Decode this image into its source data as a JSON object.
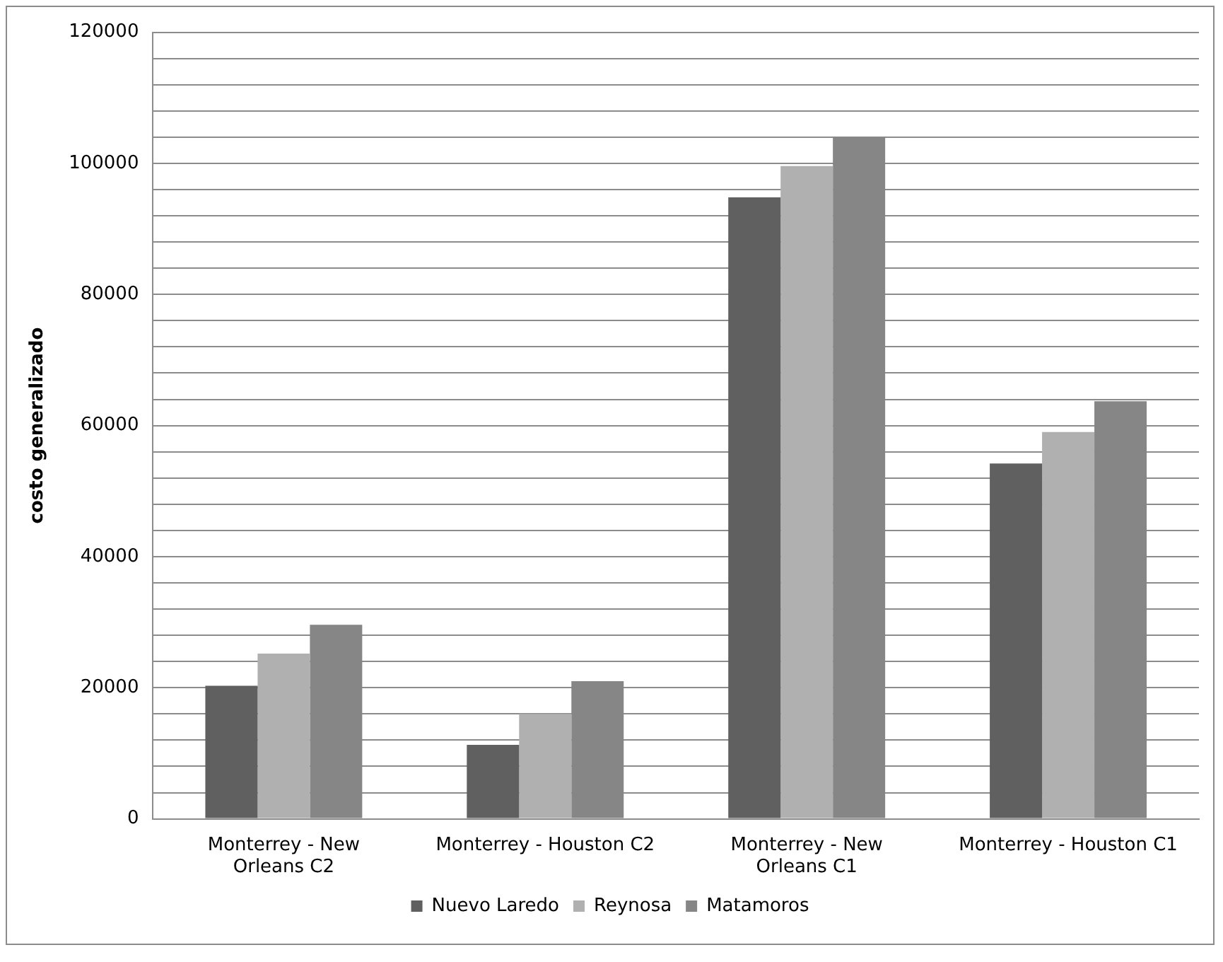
{
  "chart_data": {
    "type": "bar",
    "ylabel": "costo generalizado",
    "categories": [
      "Monterrey - New Orleans C2",
      "Monterrey - Houston C2",
      "Monterrey - New Orleans C1",
      "Monterrey - Houston C1"
    ],
    "series": [
      {
        "name": "Nuevo Laredo",
        "color": "#606060",
        "values": [
          20300,
          11300,
          94800,
          54200
        ]
      },
      {
        "name": "Reynosa",
        "color": "#b0b0b0",
        "values": [
          25200,
          16000,
          99600,
          59000
        ]
      },
      {
        "name": "Matamoros",
        "color": "#868686",
        "values": [
          29600,
          21000,
          104000,
          63700
        ]
      }
    ],
    "ylim": [
      0,
      120000
    ],
    "yticks": [
      0,
      {
        "value": 4000,
        "label": null
      },
      {
        "value": 8000,
        "label": null
      },
      {
        "value": 12000,
        "label": null
      },
      {
        "value": 16000,
        "label": null
      },
      20000,
      {
        "value": 24000,
        "label": null
      },
      {
        "value": 28000,
        "label": null
      },
      {
        "value": 32000,
        "label": null
      },
      {
        "value": 36000,
        "label": null
      },
      40000,
      {
        "value": 44000,
        "label": null
      },
      {
        "value": 48000,
        "label": null
      },
      {
        "value": 52000,
        "label": null
      },
      {
        "value": 56000,
        "label": null
      },
      60000,
      {
        "value": 64000,
        "label": null
      },
      {
        "value": 68000,
        "label": null
      },
      {
        "value": 72000,
        "label": null
      },
      {
        "value": 76000,
        "label": null
      },
      80000,
      {
        "value": 84000,
        "label": null
      },
      {
        "value": 88000,
        "label": null
      },
      {
        "value": 92000,
        "label": null
      },
      {
        "value": 96000,
        "label": null
      },
      100000,
      {
        "value": 104000,
        "label": null
      },
      {
        "value": 108000,
        "label": null
      },
      {
        "value": 112000,
        "label": null
      },
      {
        "value": 116000,
        "label": null
      },
      120000
    ],
    "grid": "y",
    "legend": "bottom"
  }
}
